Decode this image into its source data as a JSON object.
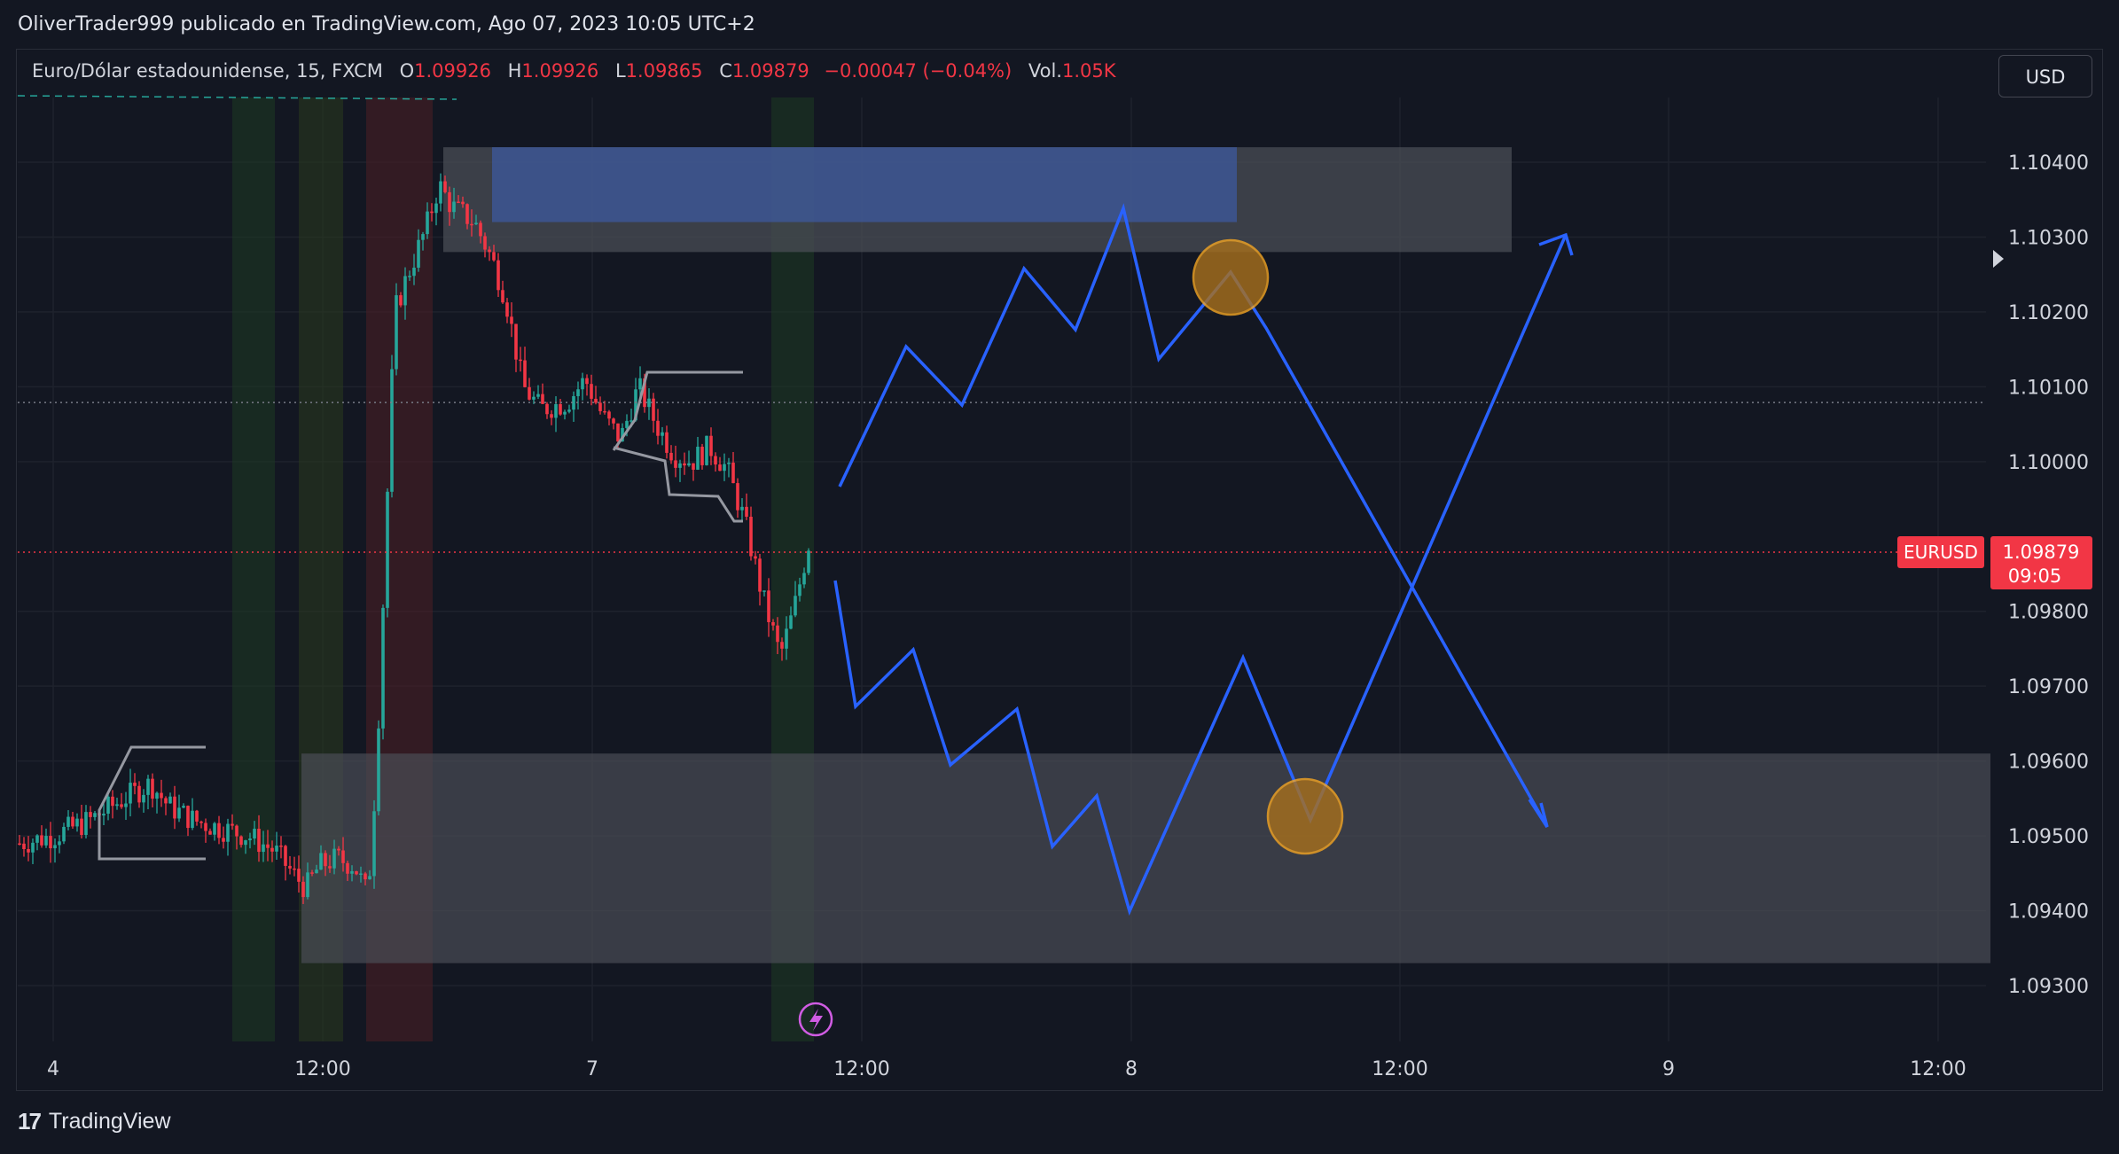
{
  "header": {
    "publish_line": "OliverTrader999 publicado en TradingView.com, Ago 07, 2023 10:05 UTC+2"
  },
  "legend": {
    "symbol_desc": "Euro/Dólar estadounidense, 15, FXCM",
    "open_label": "O",
    "open_value": "1.09926",
    "high_label": "H",
    "high_value": "1.09926",
    "low_label": "L",
    "low_value": "1.09865",
    "close_label": "C",
    "close_value": "1.09879",
    "change": "−0.00047 (−0.04%)",
    "vol_label": "Vol.",
    "vol_value": "1.05K"
  },
  "currency_button": "USD",
  "price_badge": {
    "symbol": "EURUSD",
    "price": "1.09879",
    "countdown": "09:05"
  },
  "footer": {
    "brand": "TradingView",
    "brand_mark": "17"
  },
  "colors": {
    "background": "#131722",
    "up": "#26a69a",
    "down": "#f23645",
    "projection": "#2962ff",
    "zone": "#4a4d55",
    "supply_zone": "#3d5a9e",
    "circle": "#f5a623"
  },
  "chart_data": {
    "type": "candlestick",
    "symbol": "EURUSD",
    "timeframe": "15",
    "y_axis": {
      "ticks": [
        "1.10400",
        "1.10300",
        "1.10200",
        "1.10100",
        "1.10000",
        "1.09800",
        "1.09700",
        "1.09600",
        "1.09500",
        "1.09400",
        "1.09300"
      ],
      "range": [
        1.0928,
        1.1048
      ]
    },
    "x_axis": {
      "ticks": [
        "4",
        "12:00",
        "7",
        "12:00",
        "8",
        "12:00",
        "9",
        "12:00"
      ]
    },
    "last_price": 1.09879,
    "zones": [
      {
        "name": "supply-zone",
        "from": 1.1028,
        "to": 1.1042
      },
      {
        "name": "demand-zone",
        "from": 1.0933,
        "to": 1.0961
      }
    ],
    "projection_paths": [
      {
        "name": "projection-upper",
        "points": [
          1.0996,
          1.1015,
          1.1007,
          1.1026,
          1.1017,
          1.1034,
          1.1013,
          1.1025,
          1.0951
        ]
      },
      {
        "name": "projection-lower",
        "points": [
          1.0984,
          1.0967,
          1.0975,
          1.0959,
          1.0966,
          1.0948,
          1.0955,
          1.0939,
          1.0973,
          1.0952,
          1.103
        ]
      }
    ],
    "key_circles": [
      {
        "name": "top-circle",
        "price": 1.1024
      },
      {
        "name": "bottom-circle",
        "price": 1.0952
      }
    ]
  }
}
